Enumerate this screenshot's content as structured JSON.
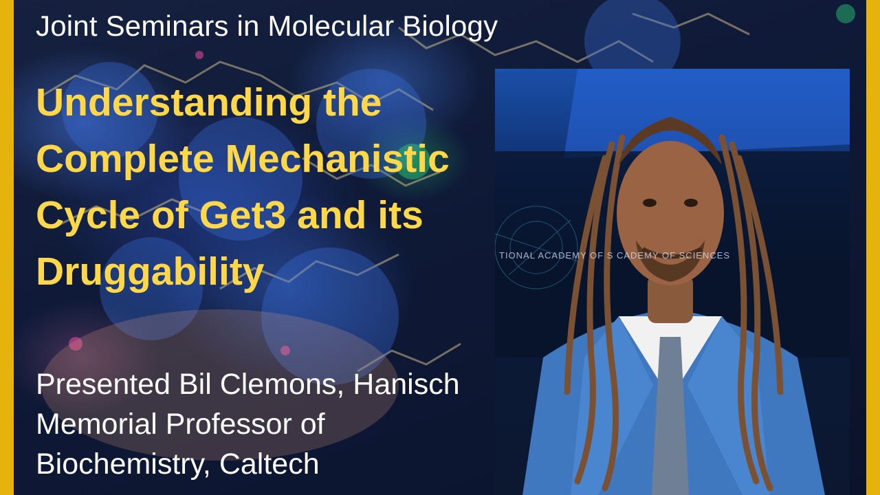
{
  "series_title": "Joint Seminars in Molecular Biology",
  "talk_title": "Understanding the Complete Mechanistic Cycle of Get3 and its Druggability",
  "presenter": "Presented Bil Clemons, Hanisch Memorial Professor of Biochemistry, Caltech",
  "photo_sign_text": "TIONAL ACADEMY OF S          CADEMY OF SCIENCES",
  "colors": {
    "accent_border": "#e5b30c",
    "title_yellow": "#ffd84a",
    "text_white": "#ffffff"
  },
  "icons": {
    "background": "molecular-structure-image",
    "speaker_photo": "speaker-portrait"
  }
}
